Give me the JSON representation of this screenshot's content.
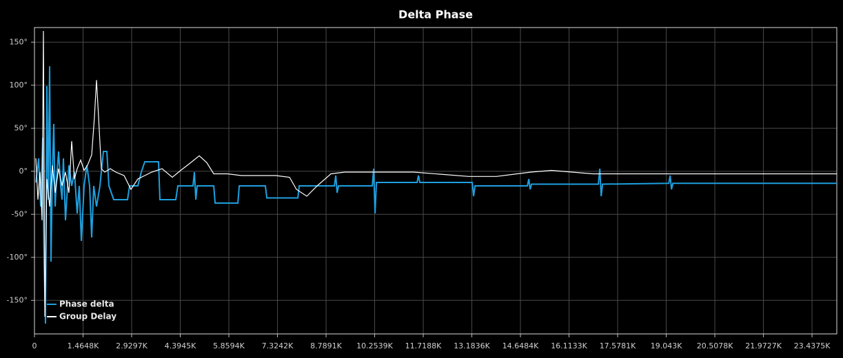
{
  "chart_data": {
    "type": "line",
    "title": "Delta Phase",
    "xlim": [
      0,
      24184
    ],
    "ylim": [
      -189,
      167
    ],
    "xticks": [
      0,
      {
        "value": 1464.8,
        "label": "1.4648K"
      },
      {
        "value": 2929.7,
        "label": "2.9297K"
      },
      {
        "value": 4394.5,
        "label": "4.3945K"
      },
      {
        "value": 5859.4,
        "label": "5.8594K"
      },
      {
        "value": 7324.2,
        "label": "7.3242K"
      },
      {
        "value": 8789.1,
        "label": "8.7891K"
      },
      {
        "value": 10253.9,
        "label": "10.2539K"
      },
      {
        "value": 11718.8,
        "label": "11.7188K"
      },
      {
        "value": 13183.6,
        "label": "13.1836K"
      },
      {
        "value": 14648.4,
        "label": "14.6484K"
      },
      {
        "value": 16113.3,
        "label": "16.1133K"
      },
      {
        "value": 17578.1,
        "label": "17.5781K"
      },
      {
        "value": 19043,
        "label": "19.043K"
      },
      {
        "value": 20507.8,
        "label": "20.5078K"
      },
      {
        "value": 21972.7,
        "label": "21.9727K"
      },
      {
        "value": 23437.5,
        "label": "23.4375K"
      }
    ],
    "yticks": [
      {
        "value": -150,
        "label": "-150°"
      },
      {
        "value": -100,
        "label": "-100°"
      },
      {
        "value": -50,
        "label": "-50°"
      },
      {
        "value": 0,
        "label": "0°"
      },
      {
        "value": 50,
        "label": "50°"
      },
      {
        "value": 100,
        "label": "100°"
      },
      {
        "value": 150,
        "label": "150°"
      }
    ],
    "grid": true,
    "legend": "lower left",
    "series": [
      {
        "name": "Phase delta",
        "color": "#1ea0e0",
        "x": [
          42,
          125,
          187,
          249,
          291,
          332,
          374,
          416,
          457,
          499,
          540,
          582,
          623,
          665,
          727,
          790,
          831,
          873,
          935,
          997,
          1039,
          1122,
          1205,
          1288,
          1351,
          1413,
          1496,
          1579,
          1662,
          1725,
          1787,
          1870,
          1974,
          2078,
          2182,
          2244,
          2390,
          2805,
          2868,
          3117,
          3221,
          3325,
          3740,
          3782,
          4260,
          4322,
          4779,
          4821,
          4863,
          4904,
          5403,
          5445,
          6131,
          6172,
          6961,
          7003,
          7938,
          7980,
          9039,
          9081,
          9122,
          9164,
          10182,
          10224,
          10265,
          10307,
          11533,
          11575,
          11616,
          13195,
          13237,
          13279,
          14858,
          14900,
          14941,
          14983,
          16998,
          17040,
          17082,
          17123,
          19118,
          19160,
          19201,
          19243,
          24184
        ],
        "values": [
          -13,
          15,
          -41,
          39,
          -105,
          -177,
          99,
          -33,
          122,
          -105,
          -1,
          55,
          -41,
          -9,
          23,
          -17,
          -33,
          15,
          -57,
          -17,
          7,
          -17,
          -1,
          -49,
          -17,
          -81,
          -17,
          7,
          -17,
          -77,
          -17,
          -41,
          -17,
          23,
          23,
          -17,
          -33,
          -33,
          -17,
          -17,
          -1,
          11,
          11,
          -33,
          -33,
          -17,
          -17,
          -1,
          -33,
          -17,
          -17,
          -37,
          -37,
          -17,
          -17,
          -31,
          -31,
          -17,
          -17,
          -5,
          -25,
          -17,
          -17,
          3,
          -49,
          -13,
          -13,
          -5,
          -13,
          -13,
          -29,
          -17,
          -17,
          -9,
          -21,
          -15,
          -15,
          3,
          -29,
          -15,
          -14,
          -5,
          -21,
          -14,
          -14
        ]
      },
      {
        "name": "Group Delay",
        "color": "#ffffff",
        "x": [
          42,
          104,
          166,
          229,
          270,
          312,
          374,
          457,
          540,
          623,
          727,
          831,
          935,
          1039,
          1122,
          1205,
          1288,
          1392,
          1496,
          1600,
          1725,
          1808,
          1870,
          1933,
          2016,
          2120,
          2286,
          2452,
          2701,
          2909,
          3117,
          3325,
          3533,
          3845,
          4156,
          4406,
          4676,
          4967,
          5195,
          5403,
          5819,
          6235,
          7273,
          7689,
          7896,
          8208,
          8520,
          8936,
          9351,
          11429,
          13091,
          13922,
          14962,
          15585,
          16832,
          24184
        ],
        "values": [
          15,
          -33,
          -1,
          -57,
          163,
          -169,
          -9,
          -41,
          7,
          -25,
          3,
          -17,
          -1,
          -25,
          35,
          -9,
          3,
          13,
          1,
          7,
          19,
          63,
          106,
          63,
          3,
          -1,
          3,
          -1,
          -5,
          -21,
          -9,
          -5,
          -1,
          3,
          -7,
          1,
          9,
          18,
          10,
          -3,
          -3,
          -5,
          -5,
          -7,
          -21,
          -29,
          -17,
          -3,
          -1,
          -1,
          -6,
          -6,
          -1,
          1,
          -3,
          -3
        ]
      }
    ]
  }
}
